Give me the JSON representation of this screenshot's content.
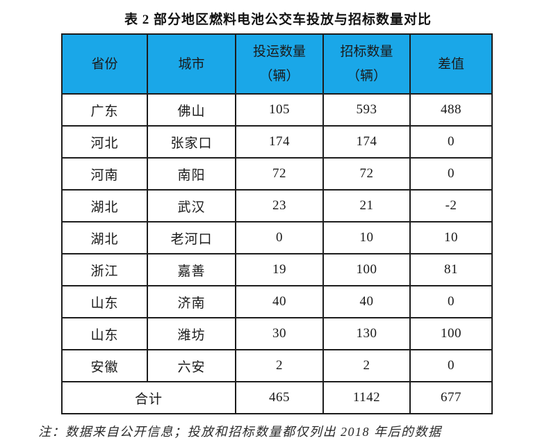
{
  "title": "表 2 部分地区燃料电池公交车投放与招标数量对比",
  "colors": {
    "header_bg": "#1aa7e8",
    "border": "#1c1c1c",
    "page_bg": "#ffffff",
    "text": "#1a1a1a"
  },
  "table": {
    "headers": [
      {
        "label": "省份",
        "sub": ""
      },
      {
        "label": "城市",
        "sub": ""
      },
      {
        "label": "投运数量",
        "sub": "（辆）"
      },
      {
        "label": "招标数量",
        "sub": "（辆）"
      },
      {
        "label": "差值",
        "sub": ""
      }
    ],
    "rows": [
      [
        "广东",
        "佛山",
        "105",
        "593",
        "488"
      ],
      [
        "河北",
        "张家口",
        "174",
        "174",
        "0"
      ],
      [
        "河南",
        "南阳",
        "72",
        "72",
        "0"
      ],
      [
        "湖北",
        "武汉",
        "23",
        "21",
        "-2"
      ],
      [
        "湖北",
        "老河口",
        "0",
        "10",
        "10"
      ],
      [
        "浙江",
        "嘉善",
        "19",
        "100",
        "81"
      ],
      [
        "山东",
        "济南",
        "40",
        "40",
        "0"
      ],
      [
        "山东",
        "潍坊",
        "30",
        "130",
        "100"
      ],
      [
        "安徽",
        "六安",
        "2",
        "2",
        "0"
      ]
    ],
    "total": {
      "label": "合计",
      "values": [
        "465",
        "1142",
        "677"
      ]
    }
  },
  "note": "注：数据来自公开信息；投放和招标数量都仅列出 2018 年后的数据"
}
